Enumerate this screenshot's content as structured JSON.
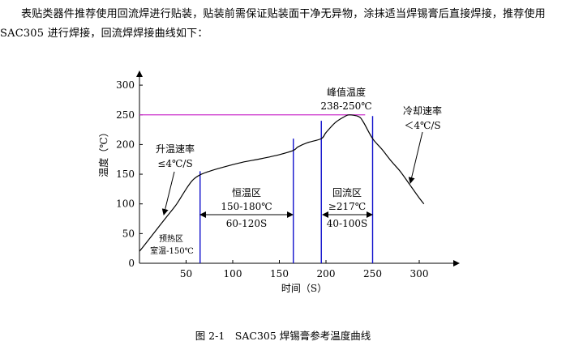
{
  "document": {
    "paragraph": "表贴类器件推荐使用回流焊进行贴装，贴装前需保证贴装面干净无异物，涂抹适当焊锡膏后直接焊接，推荐使用 SAC305 进行焊接，回流焊焊接曲线如下：",
    "caption": "图 2-1　SAC305 焊锡膏参考温度曲线"
  },
  "colors": {
    "curve": "#000000",
    "zone_line": "#1010cc",
    "peak_line": "#cc33cc",
    "axis": "#000000"
  },
  "chart_data": {
    "type": "line",
    "xlabel": "时间（S）",
    "ylabel": "温度（℃）",
    "xlim": [
      0,
      320
    ],
    "ylim": [
      0,
      300
    ],
    "x_ticks": [
      50,
      100,
      150,
      200,
      250,
      300
    ],
    "y_ticks": [
      0,
      50,
      100,
      150,
      200,
      250,
      300
    ],
    "grid": false,
    "series": [
      {
        "x": [
          0,
          10,
          20,
          30,
          40,
          50,
          57,
          65,
          75,
          90,
          110,
          130,
          150,
          165,
          170,
          180,
          195,
          200,
          210,
          220,
          225,
          235,
          240,
          250,
          260,
          270,
          280,
          290,
          300,
          305
        ],
        "y": [
          20,
          40,
          60,
          80,
          100,
          125,
          140,
          149,
          155,
          162,
          170,
          176,
          183,
          190,
          196,
          203,
          210,
          220,
          237,
          247,
          250,
          247,
          238,
          210,
          192,
          172,
          154,
          132,
          110,
          100
        ]
      }
    ],
    "zone_lines_x": [
      65,
      165,
      195,
      250
    ],
    "peak_line_y": 250,
    "annotations": {
      "preheat": {
        "title": "预热区",
        "range": "室温-150℃"
      },
      "soak": {
        "title": "恒温区",
        "temp": "150-180℃",
        "time": "60-120S"
      },
      "reflow": {
        "title": "回流区",
        "temp": "≥217℃",
        "time": "40-100S"
      },
      "peak": {
        "title": "峰值温度",
        "temp": "238-250℃"
      },
      "ramp_up": {
        "title": "升温速率",
        "rate": "≤4℃/S"
      },
      "cool": {
        "title": "冷却速率",
        "rate": "＜4℃/S"
      }
    }
  }
}
